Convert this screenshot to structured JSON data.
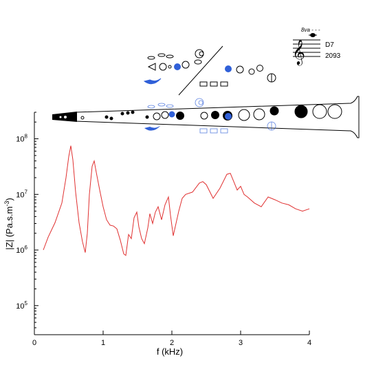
{
  "chart_data": {
    "type": "line",
    "xlabel": "f (kHz)",
    "ylabel": "|Z| (Pa.s.m",
    "ylabel_sup": "-3",
    "ylabel_close": ")",
    "xlim": [
      0,
      4
    ],
    "ylim": [
      30000,
      300000000
    ],
    "y_scale": "log",
    "grid": false,
    "x_ticks": [
      0,
      1,
      2,
      3,
      4
    ],
    "x_tick_labels": [
      "0",
      "1",
      "2",
      "3",
      "4"
    ],
    "y_ticks": [
      100000,
      1000000,
      10000000,
      100000000
    ],
    "y_tick_labels": [
      {
        "base": "10",
        "exp": "5"
      },
      {
        "base": "10",
        "exp": "6"
      },
      {
        "base": "10",
        "exp": "7"
      },
      {
        "base": "10",
        "exp": "8"
      }
    ],
    "series": [
      {
        "color": "#e03030",
        "x": [
          0.13,
          0.2,
          0.3,
          0.4,
          0.46,
          0.5,
          0.53,
          0.56,
          0.6,
          0.65,
          0.7,
          0.74,
          0.77,
          0.8,
          0.84,
          0.87,
          0.9,
          0.95,
          1.0,
          1.05,
          1.1,
          1.15,
          1.2,
          1.25,
          1.3,
          1.33,
          1.37,
          1.41,
          1.45,
          1.49,
          1.52,
          1.56,
          1.6,
          1.65,
          1.68,
          1.72,
          1.76,
          1.8,
          1.85,
          1.9,
          1.95,
          1.98,
          2.02,
          2.06,
          2.1,
          2.15,
          2.2,
          2.3,
          2.4,
          2.45,
          2.5,
          2.6,
          2.7,
          2.8,
          2.85,
          2.9,
          2.95,
          3.0,
          3.05,
          3.1,
          3.2,
          3.3,
          3.4,
          3.5,
          3.6,
          3.7,
          3.8,
          3.9,
          4.0
        ],
        "y": [
          1000000,
          1700000,
          3100000,
          7000000,
          20000000,
          48000000,
          75000000,
          42000000,
          11000000,
          3100000,
          1400000,
          900000,
          2000000,
          10000000,
          32000000,
          40000000,
          25000000,
          12000000,
          6000000,
          3500000,
          2800000,
          2700000,
          2400000,
          1500000,
          850000,
          800000,
          1900000,
          1600000,
          3800000,
          4800000,
          2600000,
          1600000,
          1300000,
          2500000,
          4500000,
          3000000,
          4800000,
          6000000,
          3500000,
          6500000,
          9000000,
          4200000,
          1800000,
          3000000,
          5000000,
          8500000,
          10000000,
          11000000,
          16000000,
          17000000,
          15000000,
          8500000,
          13000000,
          23000000,
          24000000,
          17000000,
          12000000,
          14000000,
          10000000,
          9000000,
          7000000,
          6000000,
          9000000,
          8000000,
          7000000,
          6500000,
          5500000,
          5000000,
          5500000
        ]
      }
    ]
  },
  "notation": {
    "octave_mark": "8va - - -",
    "note_name": "D7",
    "frequency": "2093"
  }
}
